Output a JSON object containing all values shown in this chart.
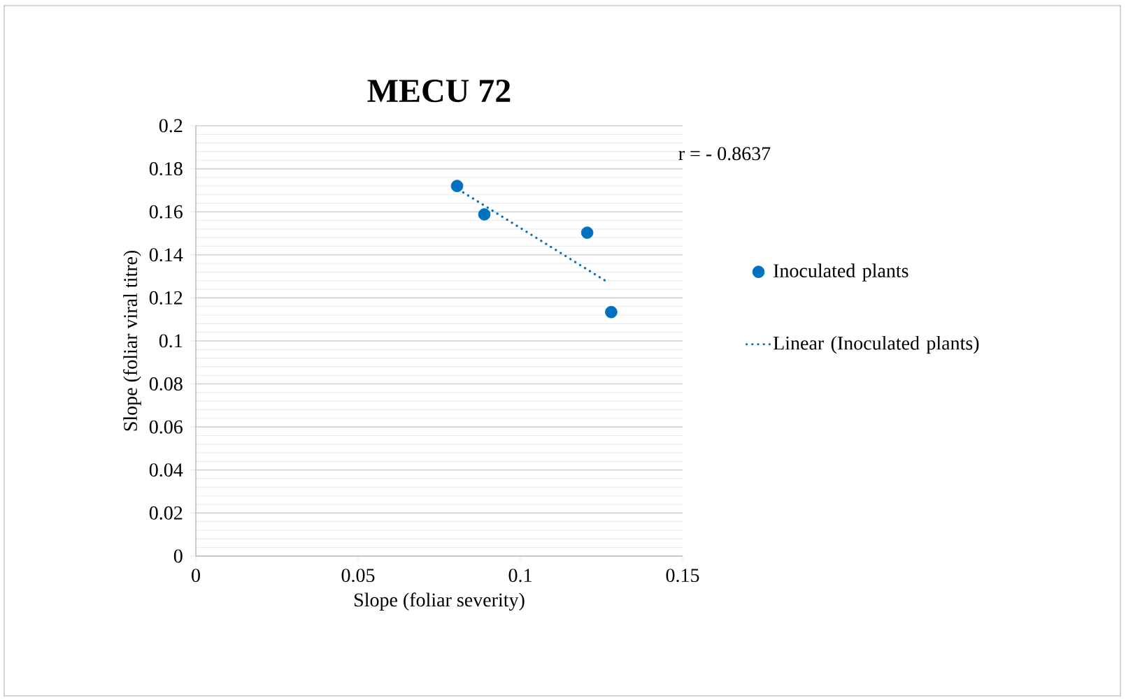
{
  "chart_data": {
    "type": "scatter",
    "title": "MECU 72",
    "xlabel": "Slope (foliar severity)",
    "ylabel": "Slope (foliar viral titre)",
    "annotations": [
      "r = - 0.8637"
    ],
    "xlim": [
      0,
      0.15
    ],
    "xticks": [
      0,
      0.05,
      0.1,
      0.15
    ],
    "ylim": [
      0,
      0.2
    ],
    "yticks": [
      0,
      0.02,
      0.04,
      0.06,
      0.08,
      0.1,
      0.12,
      0.14,
      0.16,
      0.18,
      0.2
    ],
    "grid": "y",
    "legend": "right",
    "marker": "circle",
    "series": [
      {
        "name": "Inoculated plants",
        "color": "#0070c0",
        "x": [
          0.0805,
          0.0889,
          0.1206,
          0.128
        ],
        "values": [
          0.172,
          0.1588,
          0.1503,
          0.1134
        ]
      },
      {
        "name": "Linear (Inoculated plants)",
        "type": "line",
        "line_style": "dotted",
        "marker": "none",
        "color": "#0070c0",
        "x": [
          0.0824,
          0.1267
        ],
        "values": [
          0.169,
          0.1275
        ]
      }
    ]
  }
}
